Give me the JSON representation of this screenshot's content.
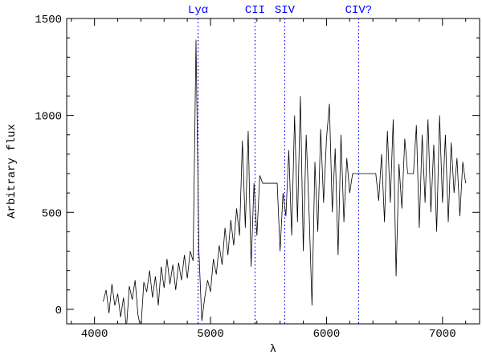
{
  "chart_data": {
    "type": "line",
    "x_label": "λ",
    "y_label": "Arbitrary flux",
    "xlim": [
      3760,
      7320
    ],
    "ylim": [
      -75,
      1500
    ],
    "xticks": [
      4000,
      5000,
      6000,
      7000
    ],
    "yticks": [
      0,
      500,
      1000,
      1500
    ],
    "xticks_minor": [
      3800,
      4200,
      4400,
      4600,
      4800,
      5200,
      5400,
      5600,
      5800,
      6200,
      6400,
      6600,
      6800,
      7200
    ],
    "yticks_minor": [
      100,
      200,
      300,
      400,
      600,
      700,
      800,
      900,
      1100,
      1200,
      1300,
      1400
    ],
    "line_color": "#000000",
    "marker_color": "#0000ff",
    "markers": [
      {
        "label": "Lyα",
        "x": 4893
      },
      {
        "label": "CII",
        "x": 5384
      },
      {
        "label": "SIV",
        "x": 5640
      },
      {
        "label": "CIV?",
        "x": 6277
      }
    ],
    "x": [
      4075,
      4100,
      4125,
      4150,
      4175,
      4200,
      4225,
      4250,
      4275,
      4300,
      4325,
      4350,
      4375,
      4400,
      4425,
      4450,
      4475,
      4500,
      4525,
      4550,
      4575,
      4600,
      4625,
      4650,
      4675,
      4700,
      4725,
      4750,
      4775,
      4800,
      4825,
      4850,
      4875,
      4900,
      4925,
      4950,
      4975,
      5000,
      5025,
      5050,
      5075,
      5100,
      5125,
      5150,
      5175,
      5200,
      5225,
      5250,
      5275,
      5300,
      5325,
      5350,
      5375,
      5400,
      5425,
      5450,
      5475,
      5500,
      5525,
      5550,
      5575,
      5600,
      5625,
      5650,
      5675,
      5700,
      5725,
      5750,
      5775,
      5800,
      5825,
      5850,
      5875,
      5900,
      5925,
      5950,
      5975,
      6000,
      6025,
      6050,
      6075,
      6100,
      6125,
      6150,
      6175,
      6200,
      6225,
      6250,
      6275,
      6300,
      6325,
      6350,
      6375,
      6400,
      6425,
      6450,
      6475,
      6500,
      6525,
      6550,
      6575,
      6600,
      6625,
      6650,
      6675,
      6700,
      6725,
      6750,
      6775,
      6800,
      6825,
      6850,
      6875,
      6900,
      6925,
      6950,
      6975,
      7000,
      7025,
      7050,
      7075,
      7100,
      7125,
      7150,
      7175,
      7200
    ],
    "values": [
      40,
      100,
      -20,
      130,
      20,
      80,
      -40,
      60,
      -100,
      120,
      50,
      150,
      -30,
      -100,
      140,
      90,
      200,
      60,
      170,
      20,
      220,
      110,
      260,
      130,
      230,
      100,
      240,
      150,
      280,
      160,
      300,
      250,
      1390,
      300,
      -60,
      60,
      150,
      90,
      260,
      180,
      330,
      230,
      420,
      280,
      460,
      330,
      520,
      380,
      870,
      420,
      920,
      220,
      650,
      380,
      690,
      650,
      650,
      650,
      650,
      650,
      650,
      300,
      600,
      480,
      820,
      380,
      1000,
      450,
      1100,
      300,
      900,
      500,
      20,
      760,
      400,
      930,
      550,
      880,
      1060,
      500,
      830,
      280,
      900,
      450,
      780,
      600,
      700,
      700,
      700,
      700,
      700,
      700,
      700,
      700,
      700,
      560,
      800,
      450,
      920,
      550,
      980,
      170,
      750,
      520,
      880,
      700,
      700,
      700,
      950,
      420,
      900,
      550,
      980,
      500,
      850,
      400,
      1000,
      550,
      900,
      450,
      860,
      600,
      780,
      480,
      760,
      650
    ]
  }
}
